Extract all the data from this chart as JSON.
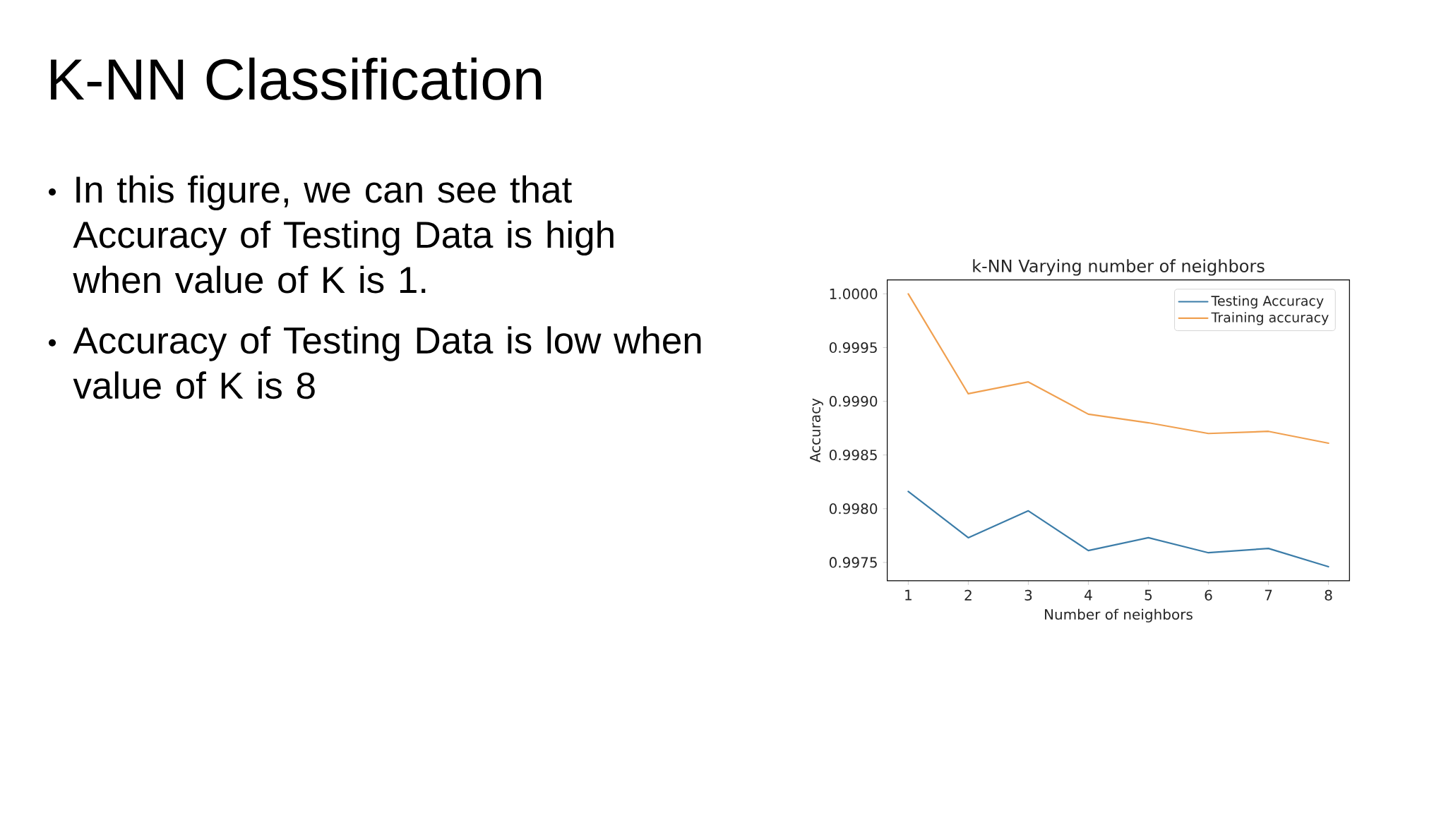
{
  "chart_data": {
    "type": "line",
    "title": "K-NN Classification",
    "subtitle": "k-NN Varying number of neighbors",
    "xlabel": "Number of neighbors",
    "ylabel": "Accuracy",
    "x": [
      1,
      2,
      3,
      4,
      5,
      6,
      7,
      8
    ],
    "series": [
      {
        "name": "Testing Accuracy",
        "color": "#3b7ca8",
        "values": [
          0.99816,
          0.99773,
          0.99798,
          0.99761,
          0.99773,
          0.99759,
          0.99763,
          0.99746
        ]
      },
      {
        "name": "Training accuracy",
        "color": "#f0a050",
        "values": [
          1.0,
          0.99907,
          0.99918,
          0.99888,
          0.9988,
          0.9987,
          0.99872,
          0.99861
        ]
      }
    ],
    "xlim": [
      0.65,
      8.35
    ],
    "ylim": [
      0.99733,
      1.00013
    ],
    "xticks": [
      1,
      2,
      3,
      4,
      5,
      6,
      7,
      8
    ],
    "yticks": [
      0.9975,
      {
        "value": 0.998,
        "label": "0.9980"
      },
      0.9985,
      {
        "value": 0.999,
        "label": "0.9990"
      },
      0.9995,
      {
        "value": 1,
        "label": "1.0000"
      }
    ],
    "legend": "top right",
    "annotations": [
      "In this figure, we can see that Accuracy of Testing Data is high when value of K is 1.",
      "Accuracy of Testing Data is low when value of K is 8"
    ]
  }
}
